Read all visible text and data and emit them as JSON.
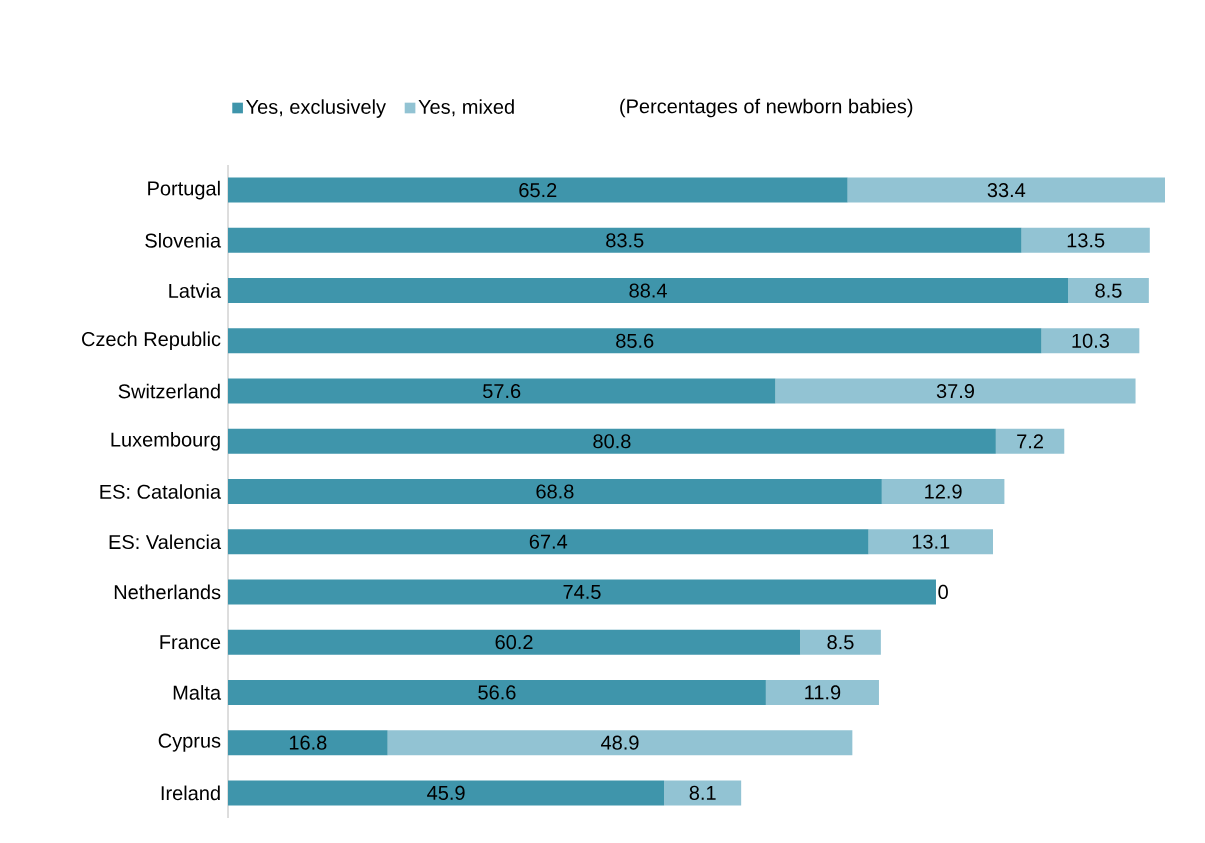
{
  "chart_data": {
    "type": "bar",
    "orientation": "horizontal",
    "stacked": true,
    "subtitle": "(Percentages of newborn babies)",
    "categories": [
      "Portugal",
      "Slovenia",
      "Latvia",
      "Czech Republic",
      "Switzerland",
      "Luxembourg",
      "ES: Catalonia",
      "ES: Valencia",
      "Netherlands",
      "France",
      "Malta",
      "Cyprus",
      "Ireland"
    ],
    "series": [
      {
        "name": "Yes, exclusively",
        "color": "#3f95ab",
        "values": [
          65.2,
          83.5,
          88.4,
          85.6,
          57.6,
          80.8,
          68.8,
          67.4,
          74.5,
          60.2,
          56.6,
          16.8,
          45.9
        ]
      },
      {
        "name": "Yes, mixed",
        "color": "#92c3d3",
        "values": [
          33.4,
          13.5,
          8.5,
          10.3,
          37.9,
          7.2,
          12.9,
          13.1,
          0,
          8.5,
          11.9,
          48.9,
          8.1
        ]
      }
    ],
    "data_labels": true,
    "legend": "top",
    "tick_labels": "y",
    "grid": false
  }
}
